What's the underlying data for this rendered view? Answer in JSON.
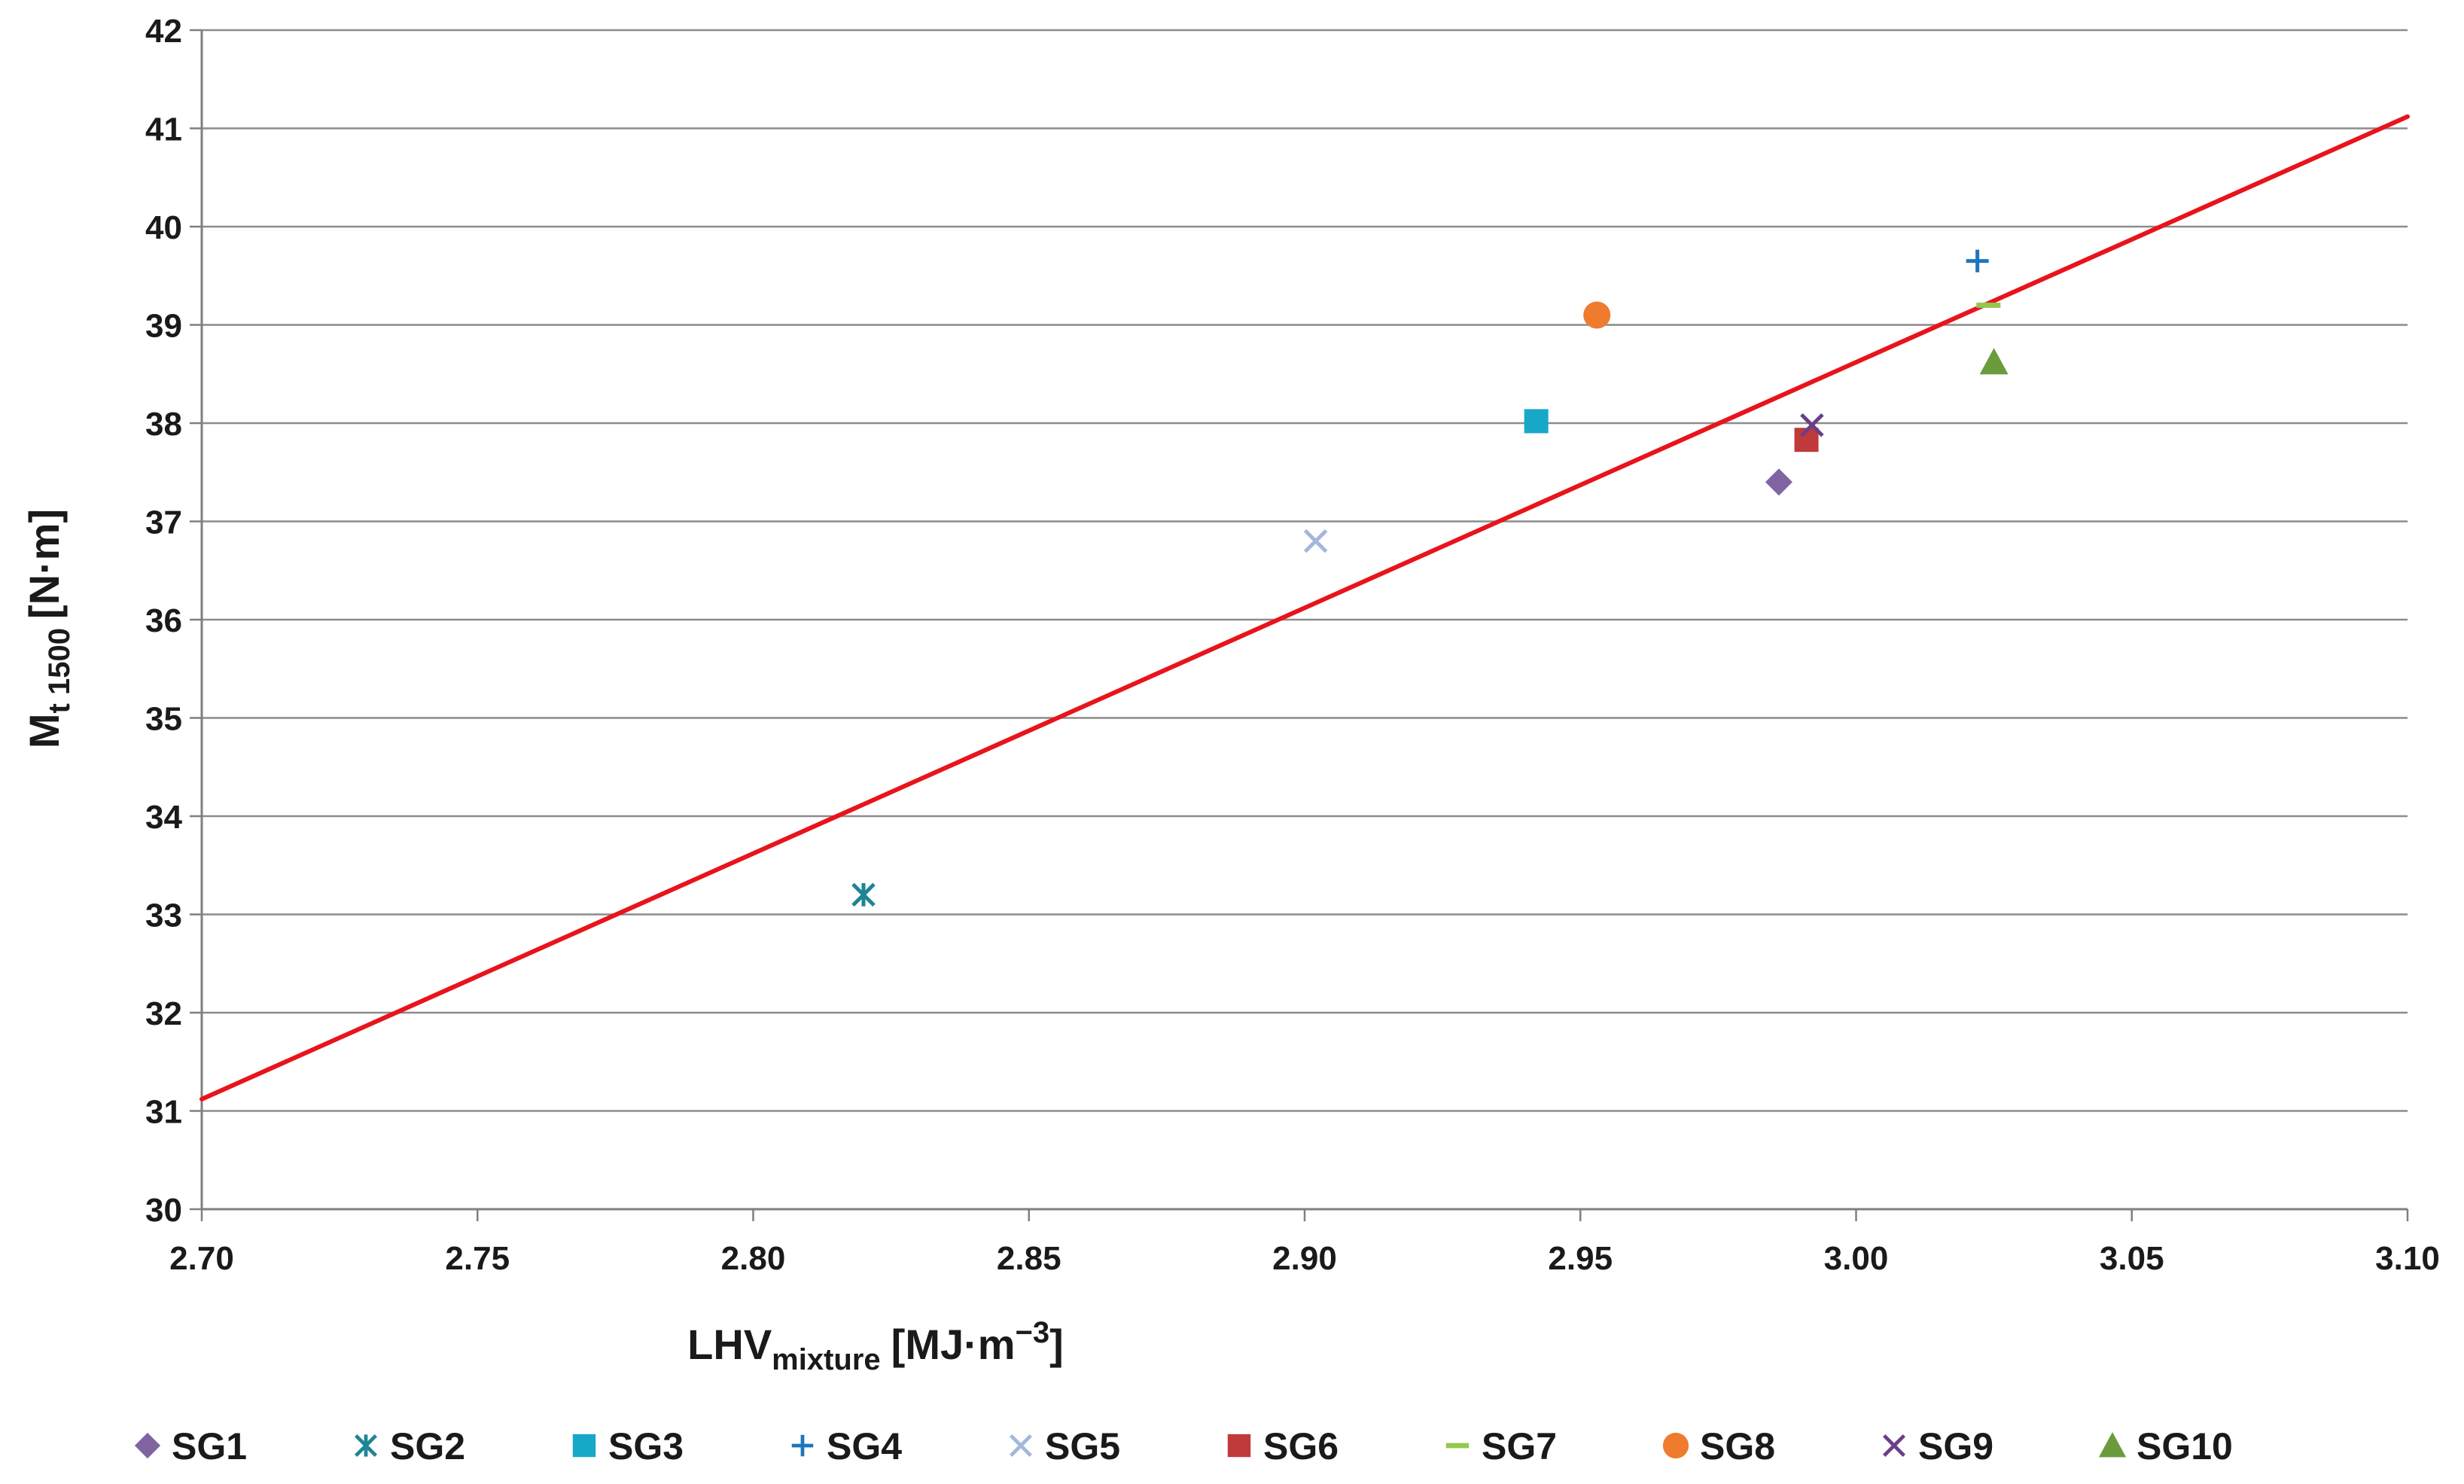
{
  "chart_data": {
    "type": "scatter",
    "title": "",
    "xlabel": {
      "main": "LHV",
      "sub": "mixture",
      "unit": "[MJ·m",
      "sup": "−3",
      "close": "]"
    },
    "ylabel": {
      "main": "M",
      "sub": "t 1500",
      "unit": "[N·m]"
    },
    "xlim": [
      2.7,
      3.1
    ],
    "ylim": [
      30,
      42
    ],
    "grid": "horizontal",
    "legend": "bottom",
    "xticks": [
      "2.70",
      "2.75",
      "2.80",
      "2.85",
      "2.90",
      "2.95",
      "3.00",
      "3.05",
      "3.10"
    ],
    "yticks": [
      "30",
      "31",
      "32",
      "33",
      "34",
      "35",
      "36",
      "37",
      "38",
      "39",
      "40",
      "41",
      "42"
    ],
    "trendline": {
      "color": "#e8141b",
      "x": [
        2.7,
        3.1
      ],
      "y": [
        31.12,
        41.12
      ]
    },
    "series": [
      {
        "name": "SG1",
        "marker": "diamond",
        "color": "#8064a2",
        "x": 2.986,
        "y": 37.4
      },
      {
        "name": "SG2",
        "marker": "asterisk",
        "color": "#1f8494",
        "x": 2.82,
        "y": 33.2
      },
      {
        "name": "SG3",
        "marker": "square",
        "color": "#17a8c8",
        "x": 2.942,
        "y": 38.02
      },
      {
        "name": "SG4",
        "marker": "plus",
        "color": "#1e75bd",
        "x": 3.022,
        "y": 39.65
      },
      {
        "name": "SG5",
        "marker": "x",
        "color": "#a3b7dc",
        "x": 2.902,
        "y": 36.8
      },
      {
        "name": "SG6",
        "marker": "square",
        "color": "#c0393b",
        "x": 2.991,
        "y": 37.83
      },
      {
        "name": "SG7",
        "marker": "dash",
        "color": "#92c84c",
        "x": 3.024,
        "y": 39.2
      },
      {
        "name": "SG8",
        "marker": "circle",
        "color": "#ee7b2e",
        "x": 2.953,
        "y": 39.1
      },
      {
        "name": "SG9",
        "marker": "x",
        "color": "#6b3f87",
        "x": 2.992,
        "y": 37.98
      },
      {
        "name": "SG10",
        "marker": "triangle",
        "color": "#6a9c3d",
        "x": 3.025,
        "y": 38.62
      }
    ]
  }
}
